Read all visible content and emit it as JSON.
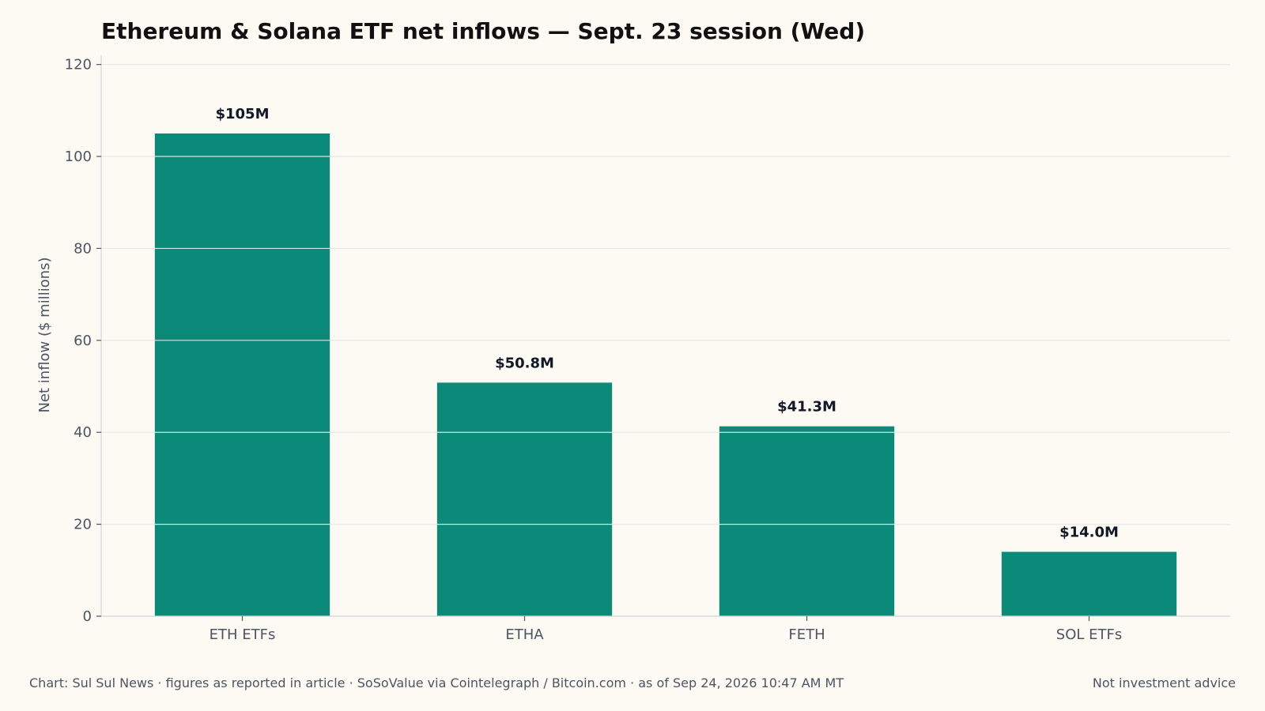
{
  "chart_data": {
    "type": "bar",
    "title": "Ethereum & Solana ETF net inflows — Sept. 23 session (Wed)",
    "ylabel": "Net inflow ($ millions)",
    "xlabel": "",
    "categories": [
      "ETH ETFs",
      "ETHA",
      "FETH",
      "SOL ETFs"
    ],
    "values": [
      105,
      50.8,
      41.3,
      14.0
    ],
    "data_labels": [
      "$105M",
      "$50.8M",
      "$41.3M",
      "$14.0M"
    ],
    "ylim": [
      0,
      122
    ],
    "yticks": [
      0,
      20,
      40,
      60,
      80,
      100,
      120
    ],
    "grid": true,
    "bar_color": "#0b8a7a"
  },
  "footer": {
    "source": "Chart: Sul Sul News · figures as reported in article · SoSoValue via Cointelegraph / Bitcoin.com · as of Sep 24, 2026 10:47 AM MT",
    "disclaimer": "Not investment advice"
  },
  "colors": {
    "background": "#fdfaf4",
    "bar": "#0b8a7a",
    "grid": "#dddddd",
    "text_muted": "#4b5563",
    "text_strong": "#111111"
  }
}
